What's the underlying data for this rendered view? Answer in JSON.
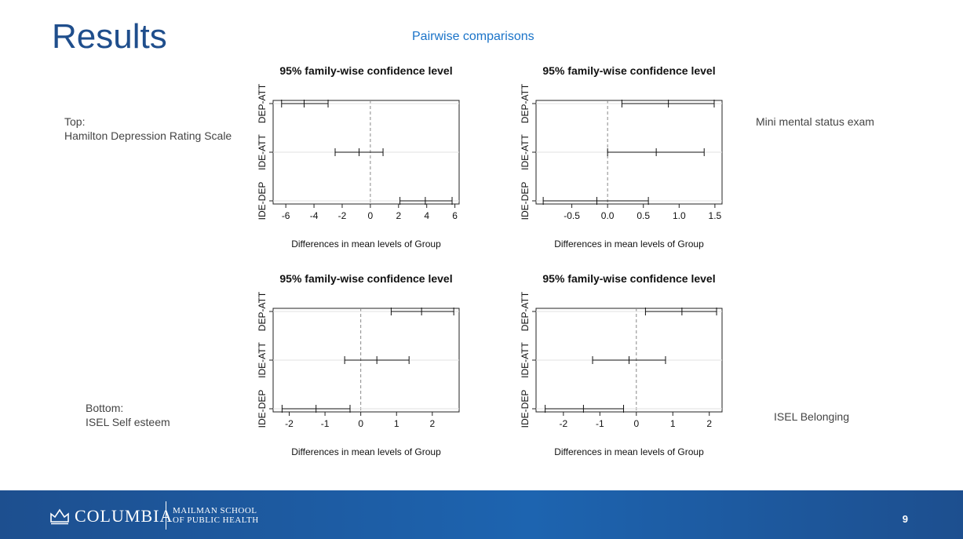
{
  "slide": {
    "title": "Results",
    "subtitle": "Pairwise comparisons",
    "page_number": "9"
  },
  "notes": {
    "top_left_line1": "Top:",
    "top_left_line2": "Hamilton Depression Rating Scale",
    "top_right": "Mini mental status exam",
    "bottom_left_line1": "Bottom:",
    "bottom_left_line2": "ISEL Self esteem",
    "bottom_right": "ISEL Belonging"
  },
  "footer": {
    "logo_text": "COLUMBIA",
    "school_line1": "MAILMAN SCHOOL",
    "school_line2": "OF PUBLIC HEALTH"
  },
  "colors": {
    "title": "#1f4e8c",
    "subtitle": "#1a73c8",
    "footer": "#1d5aa0"
  },
  "chart_data": [
    {
      "type": "interval",
      "title": "95% family-wise confidence level",
      "xlabel": "Differences in mean levels of Group",
      "categories": [
        "DEP-ATT",
        "IDE-ATT",
        "IDE-DEP"
      ],
      "xlim": [
        -6.9,
        6.3
      ],
      "xticks": [
        -6,
        -4,
        -2,
        0,
        2,
        4,
        6
      ],
      "reference_line": 0,
      "intervals": [
        {
          "label": "DEP-ATT",
          "lwr": -6.3,
          "mean": -4.7,
          "upr": -3.0
        },
        {
          "label": "IDE-ATT",
          "lwr": -2.5,
          "mean": -0.8,
          "upr": 0.9
        },
        {
          "label": "IDE-DEP",
          "lwr": 2.1,
          "mean": 3.9,
          "upr": 5.8
        }
      ]
    },
    {
      "type": "interval",
      "title": "95% family-wise confidence level",
      "xlabel": "Differences in mean levels of Group",
      "categories": [
        "DEP-ATT",
        "IDE-ATT",
        "IDE-DEP"
      ],
      "xlim": [
        -1.0,
        1.6
      ],
      "xticks": [
        -0.5,
        0.0,
        0.5,
        1.0,
        1.5
      ],
      "tick_labels": [
        "-0.5",
        "0.0",
        "0.5",
        "1.0",
        "1.5"
      ],
      "reference_line": 0,
      "intervals": [
        {
          "label": "DEP-ATT",
          "lwr": 0.2,
          "mean": 0.85,
          "upr": 1.49
        },
        {
          "label": "IDE-ATT",
          "lwr": 0.0,
          "mean": 0.68,
          "upr": 1.35
        },
        {
          "label": "IDE-DEP",
          "lwr": -0.9,
          "mean": -0.15,
          "upr": 0.57
        }
      ]
    },
    {
      "type": "interval",
      "title": "95% family-wise confidence level",
      "xlabel": "Differences in mean levels of Group",
      "categories": [
        "DEP-ATT",
        "IDE-ATT",
        "IDE-DEP"
      ],
      "xlim": [
        -2.45,
        2.75
      ],
      "xticks": [
        -2,
        -1,
        0,
        1,
        2
      ],
      "reference_line": 0,
      "intervals": [
        {
          "label": "DEP-ATT",
          "lwr": 0.85,
          "mean": 1.7,
          "upr": 2.6
        },
        {
          "label": "IDE-ATT",
          "lwr": -0.45,
          "mean": 0.45,
          "upr": 1.35
        },
        {
          "label": "IDE-DEP",
          "lwr": -2.2,
          "mean": -1.25,
          "upr": -0.3
        }
      ]
    },
    {
      "type": "interval",
      "title": "95% family-wise confidence level",
      "xlabel": "Differences in mean levels of Group",
      "categories": [
        "DEP-ATT",
        "IDE-ATT",
        "IDE-DEP"
      ],
      "xlim": [
        -2.75,
        2.35
      ],
      "xticks": [
        -2,
        -1,
        0,
        1,
        2
      ],
      "reference_line": 0,
      "intervals": [
        {
          "label": "DEP-ATT",
          "lwr": 0.25,
          "mean": 1.25,
          "upr": 2.2
        },
        {
          "label": "IDE-ATT",
          "lwr": -1.2,
          "mean": -0.2,
          "upr": 0.8
        },
        {
          "label": "IDE-DEP",
          "lwr": -2.5,
          "mean": -1.45,
          "upr": -0.35
        }
      ]
    }
  ]
}
